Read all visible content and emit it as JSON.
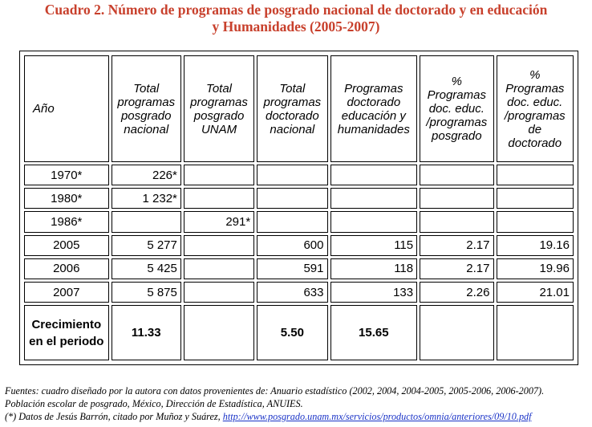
{
  "title": {
    "line1": "Cuadro 2. Número de programas de posgrado nacional de doctorado y en educación",
    "line2": "y Humanidades (2005-2007)"
  },
  "table": {
    "headers": [
      "Año",
      "Total programas posgrado nacional",
      "Total programas posgrado UNAM",
      "Total programas doctorado nacional",
      "Programas doctorado educación y humanidades",
      "% Programas doc. educ. /programas posgrado",
      "% Programas doc. educ. /programas de doctorado"
    ],
    "rows": [
      [
        "1970*",
        "226*",
        "",
        "",
        "",
        "",
        ""
      ],
      [
        "1980*",
        "1 232*",
        "",
        "",
        "",
        "",
        ""
      ],
      [
        "1986*",
        "",
        "291*",
        "",
        "",
        "",
        ""
      ],
      [
        "2005",
        "5 277",
        "",
        "600",
        "115",
        "2.17",
        "19.16"
      ],
      [
        "2006",
        "5 425",
        "",
        "591",
        "118",
        "2.17",
        "19.96"
      ],
      [
        "2007",
        "5 875",
        "",
        "633",
        "133",
        "2.26",
        "21.01"
      ]
    ],
    "growth_row": [
      "Crecimiento en el periodo",
      "11.33",
      "",
      "5.50",
      "15.65",
      "",
      ""
    ]
  },
  "footer": {
    "line1": "Fuentes: cuadro diseñado por la autora con datos provenientes de: Anuario estadístico (2002, 2004, 2004-2005, 2005-2006, 2006-2007).",
    "line2": "Población escolar de posgrado, México, Dirección de Estadística, ANUIES.",
    "line3_prefix": "(*) Datos de Jesús Barrón, citado por Muñoz y Suárez,",
    "link": "http://www.posgrado.unam.mx/servicios/productos/omnia/anteriores/09/10.pdf"
  }
}
